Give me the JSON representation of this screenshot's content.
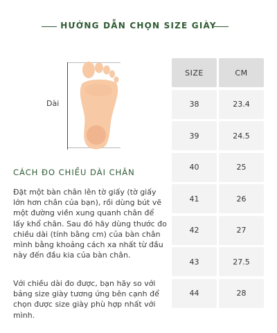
{
  "header": {
    "title": "HƯỚNG DẪN CHỌN SIZE GIÀY"
  },
  "diagram": {
    "length_label": "Dài"
  },
  "instructions": {
    "title": "CÁCH ĐO CHIỀU DÀI CHÂN",
    "paragraph1": "Đặt một bàn chân lên tờ giấy (tờ giấy lớn hơn chân của bạn), rồi dùng bút vẽ một đường viền xung quanh chân để lấy khổ chân. Sau đó hãy dùng thước đo chiều dài (tính bằng cm) của bàn chân mình bằng khoảng cách xa nhất từ đầu này đến đầu kia của bàn chân.",
    "paragraph2": "Với chiều dài đo được, bạn hãy so với bảng size giày tương ứng bên cạnh  để chọn được size giày phù hợp nhất với mình."
  },
  "size_table": {
    "headers": [
      "SIZE",
      "CM"
    ],
    "rows": [
      [
        "38",
        "23.4"
      ],
      [
        "39",
        "24.5"
      ],
      [
        "40",
        "25"
      ],
      [
        "41",
        "26"
      ],
      [
        "42",
        "27"
      ],
      [
        "43",
        "27.5"
      ],
      [
        "44",
        "28"
      ]
    ]
  },
  "colors": {
    "accent": "#2f5a34",
    "skin": "#f7c9a4",
    "cell": "#efefef",
    "header_cell": "#dedede"
  }
}
